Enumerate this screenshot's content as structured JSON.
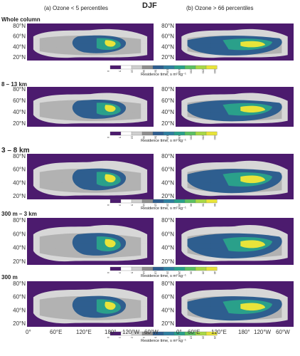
{
  "figure": {
    "title": "DJF",
    "col_a": "(a) Ozone < 5 percentiles",
    "col_b": "(b) Ozone > 66 percentiles",
    "lat_labels": [
      "80°N",
      "60°N",
      "40°N",
      "20°N"
    ],
    "lon_labels": [
      "0°",
      "60°E",
      "120°E",
      "180°",
      "120°W",
      "60°W"
    ],
    "colorbar_label": "Residence time, s m² kg⁻¹",
    "colors": {
      "background": "#4c1b6e",
      "gray_light": "#d7d7d7",
      "gray_mid": "#a3a3a3",
      "blue": "#2e5e8f",
      "teal": "#2aa08a",
      "yellow": "#e8e43a",
      "coast": "#111111"
    }
  },
  "chart_data": [
    {
      "type": "heatmap",
      "panel": "a",
      "row": "Whole column",
      "colorbar_ticks": [
        "0",
        "5",
        "10",
        "30",
        "50",
        "100",
        "150",
        "200",
        "250",
        "300"
      ]
    },
    {
      "type": "heatmap",
      "panel": "b",
      "row": "Whole column",
      "colorbar_ticks": [
        "0",
        "5",
        "10",
        "30",
        "50",
        "100",
        "150",
        "200",
        "250",
        "300"
      ]
    },
    {
      "type": "heatmap",
      "panel": "a",
      "row": "8 – 13 km",
      "colorbar_ticks": [
        "0",
        "5",
        "10",
        "30",
        "50",
        "100",
        "150",
        "200",
        "250",
        "300"
      ]
    },
    {
      "type": "heatmap",
      "panel": "b",
      "row": "8 – 13 km",
      "colorbar_ticks": [
        "0",
        "5",
        "10",
        "30",
        "50",
        "100",
        "150",
        "200",
        "250",
        "300"
      ]
    },
    {
      "type": "heatmap",
      "panel": "a",
      "row": "3 – 8 km",
      "colorbar_ticks": [
        "0",
        "3",
        "5",
        "10",
        "15",
        "20",
        "30",
        "40",
        "50",
        "60"
      ]
    },
    {
      "type": "heatmap",
      "panel": "b",
      "row": "3 – 8 km",
      "colorbar_ticks": [
        "0",
        "3",
        "5",
        "10",
        "15",
        "20",
        "30",
        "40",
        "50",
        "60"
      ]
    },
    {
      "type": "heatmap",
      "panel": "a",
      "row": "300 m – 3 km",
      "colorbar_ticks": [
        "0",
        "3",
        "5",
        "10",
        "15",
        "20",
        "25",
        "30",
        "35",
        "40"
      ]
    },
    {
      "type": "heatmap",
      "panel": "b",
      "row": "300 m – 3 km",
      "colorbar_ticks": [
        "0",
        "3",
        "5",
        "10",
        "15",
        "20",
        "25",
        "30",
        "35",
        "40"
      ]
    },
    {
      "type": "heatmap",
      "panel": "a",
      "row": "300 m",
      "colorbar_ticks": [
        "0",
        "1",
        "2",
        "3",
        "5",
        "7",
        "10",
        "15",
        "20",
        "25"
      ]
    },
    {
      "type": "heatmap",
      "panel": "b",
      "row": "300 m",
      "colorbar_ticks": [
        "0",
        "1",
        "2",
        "3",
        "5",
        "7",
        "10",
        "15",
        "20",
        "25"
      ]
    }
  ]
}
